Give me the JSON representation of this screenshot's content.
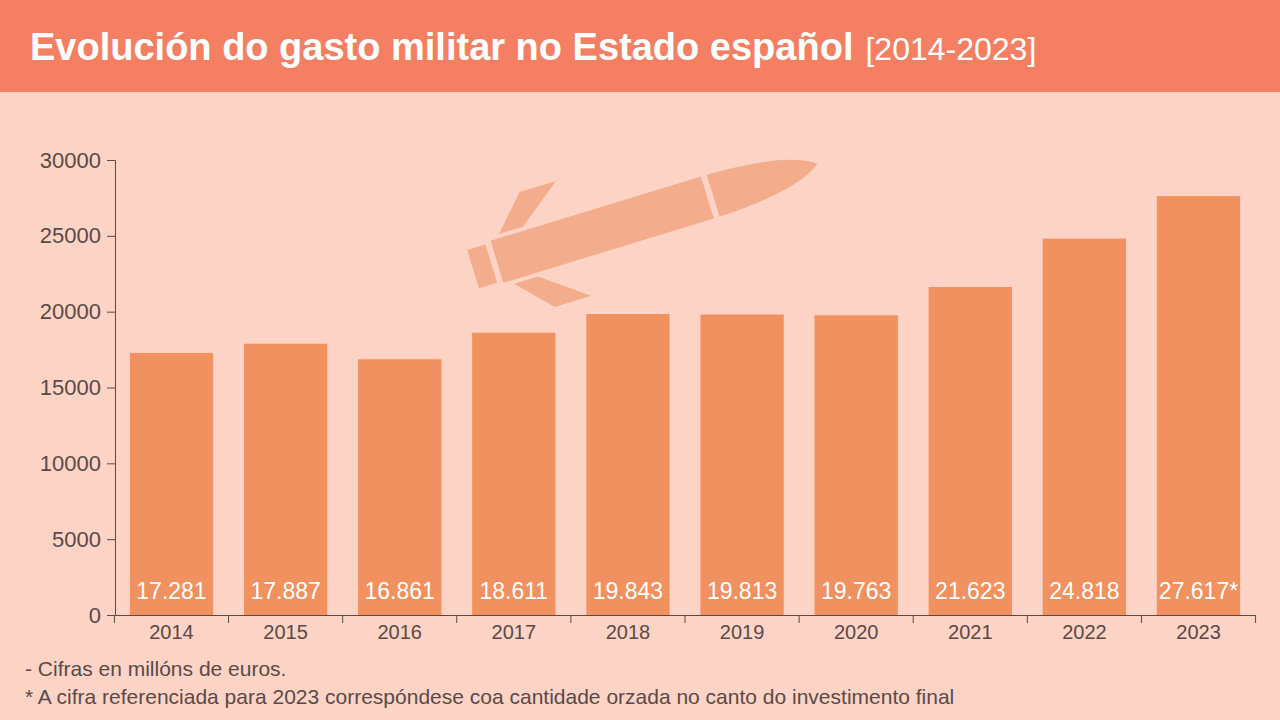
{
  "chart_data": {
    "type": "bar",
    "title": "Evolución do gasto militar no Estado español",
    "subtitle": "[2014-2023]",
    "categories": [
      "2014",
      "2015",
      "2016",
      "2017",
      "2018",
      "2019",
      "2020",
      "2021",
      "2022",
      "2023"
    ],
    "values": [
      17281,
      17887,
      16861,
      18611,
      19843,
      19813,
      19763,
      21623,
      24818,
      27617
    ],
    "value_labels": [
      "17.281",
      "17.887",
      "16.861",
      "18.611",
      "19.843",
      "19.813",
      "19.763",
      "21.623",
      "24.818",
      "27.617*"
    ],
    "data_labels": true,
    "color": "#f0915f",
    "ylim": [
      0,
      30000
    ],
    "yticks": [
      0,
      5000,
      10000,
      15000,
      20000,
      25000,
      30000
    ],
    "grid": false,
    "notes": [
      "- Cifras en millóns de euros.",
      "* A cifra referenciada para 2023 correspóndese coa cantidade orzada no canto do investimento final"
    ]
  }
}
